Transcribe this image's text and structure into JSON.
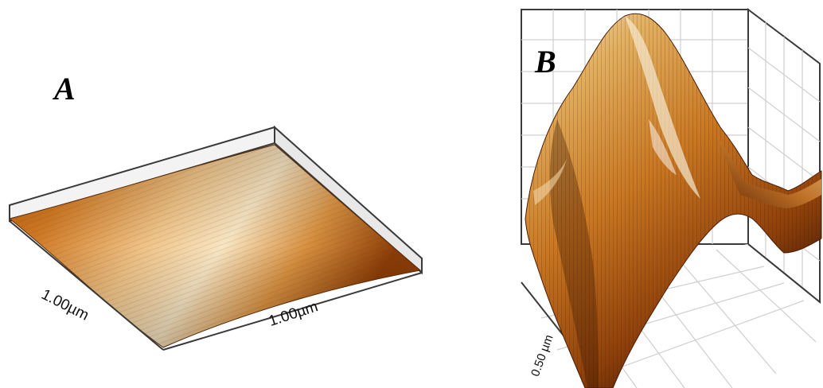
{
  "panels": {
    "a": {
      "label": "A",
      "axis_left": "1.00µm",
      "axis_bottom": "1.00µm"
    },
    "b": {
      "label": "B",
      "axis_left": "0.50 µm"
    }
  },
  "colors": {
    "surface_dark": "#8a3c06",
    "surface_mid": "#d98a2f",
    "surface_light": "#f6e2bc",
    "grid": "#c8c8c8",
    "frame": "#3a3a3a"
  }
}
